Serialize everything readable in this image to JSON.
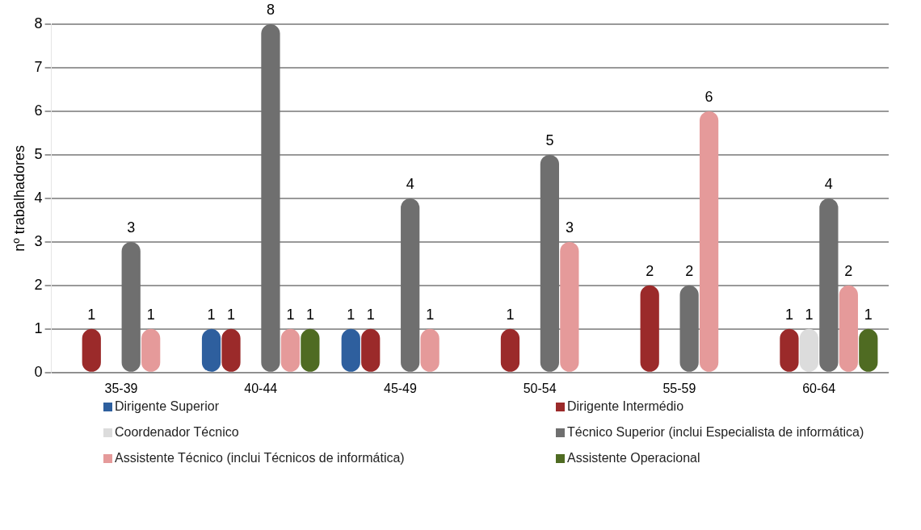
{
  "chart_data": {
    "type": "bar",
    "ylabel": "nº trabalhadores",
    "categories": [
      "35-39",
      "40-44",
      "45-49",
      "50-54",
      "55-59",
      "60-64"
    ],
    "series": [
      {
        "name": "Dirigente Superior",
        "color": "#2e5f9e",
        "values": [
          null,
          1,
          1,
          null,
          null,
          null
        ]
      },
      {
        "name": "Dirigente Intermédio",
        "color": "#9b2a2a",
        "values": [
          1,
          1,
          1,
          1,
          2,
          1
        ]
      },
      {
        "name": "Coordenador Técnico",
        "color": "#dcdcdc",
        "values": [
          null,
          null,
          null,
          null,
          null,
          1
        ]
      },
      {
        "name": "Técnico Superior (inclui Especialista de informática)",
        "color": "#6f6f6f",
        "values": [
          3,
          8,
          4,
          5,
          2,
          4
        ]
      },
      {
        "name": "Assistente Técnico (inclui Técnicos de informática)",
        "color": "#e59a9a",
        "values": [
          1,
          1,
          1,
          3,
          6,
          2
        ]
      },
      {
        "name": "Assistente Operacional",
        "color": "#4f6b22",
        "values": [
          null,
          1,
          null,
          null,
          null,
          1
        ]
      }
    ],
    "ylim": [
      0,
      8
    ],
    "yticks": [
      0,
      1,
      2,
      3,
      4,
      5,
      6,
      7,
      8
    ],
    "grid": "y",
    "legend": "bottom",
    "data_labels": true
  }
}
